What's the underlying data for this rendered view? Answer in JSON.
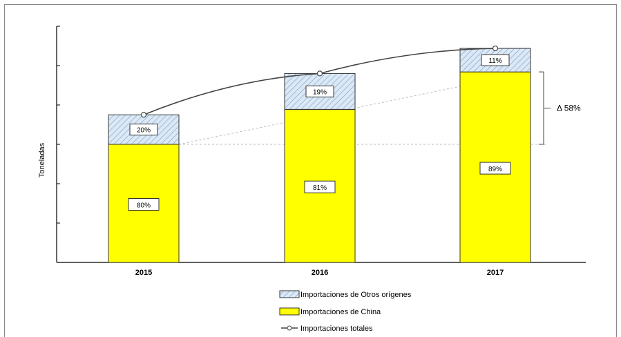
{
  "chart_data": {
    "type": "bar",
    "stacked": true,
    "categories": [
      "2015",
      "2016",
      "2017"
    ],
    "ylabel": "Toneladas",
    "series": [
      {
        "name": "Importaciones de China",
        "shares": [
          80,
          81,
          89
        ],
        "labels": [
          "80%",
          "81%",
          "89%"
        ],
        "color": "#ffff00"
      },
      {
        "name": "Importaciones de Otros orígenes",
        "shares": [
          20,
          19,
          11
        ],
        "labels": [
          "20%",
          "19%",
          "11%"
        ],
        "color": "#dbe8f5"
      }
    ],
    "line": {
      "name": "Importaciones totales",
      "values": [
        100,
        128,
        145
      ]
    },
    "bar_totals": [
      100,
      128,
      145
    ],
    "ylim": [
      0,
      160
    ],
    "annotation": {
      "text": "Δ 58%"
    },
    "legend": {
      "position": "bottom",
      "entries": [
        "Importaciones de Otros orígenes",
        "Importaciones de China",
        "Importaciones totales"
      ]
    },
    "grid": false
  }
}
